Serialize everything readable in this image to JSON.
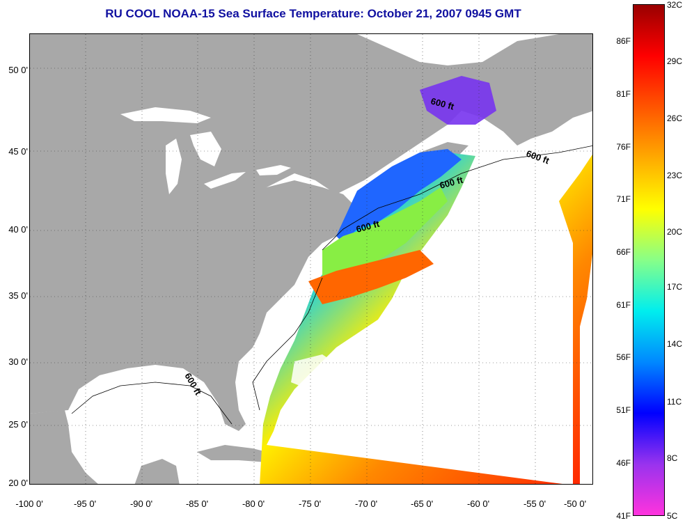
{
  "title": "RU COOL  NOAA-15  Sea Surface Temperature:  October 21, 2007 0945 GMT",
  "map": {
    "land_color": "#a8a8a8",
    "cloud_color": "#ffffff",
    "latitude_labels": [
      "50 0'",
      "45 0'",
      "40 0'",
      "35 0'",
      "30 0'",
      "25 0'",
      "20 0'"
    ],
    "longitude_labels": [
      "-100 0'",
      "-95 0'",
      "-90 0'",
      "-85 0'",
      "-80 0'",
      "-75 0'",
      "-70 0'",
      "-65 0'",
      "-60 0'",
      "-55 0'",
      "-50 0'"
    ],
    "isobath_labels": [
      "600 ft",
      "600 ft",
      "600 ft",
      "600 ft",
      "600 ft"
    ]
  },
  "colorbar": {
    "fahrenheit_labels": [
      "86F",
      "81F",
      "76F",
      "71F",
      "66F",
      "61F",
      "56F",
      "51F",
      "46F",
      "41F"
    ],
    "celsius_labels": [
      "32C",
      "29C",
      "26C",
      "23C",
      "20C",
      "17C",
      "14C",
      "11C",
      "8C",
      "5C"
    ],
    "stops": [
      "#ff33dd",
      "#9933ee",
      "#0000ff",
      "#0088ff",
      "#00eeee",
      "#88ff88",
      "#ffff00",
      "#ffaa00",
      "#ff5500",
      "#ff0000",
      "#990000"
    ]
  }
}
